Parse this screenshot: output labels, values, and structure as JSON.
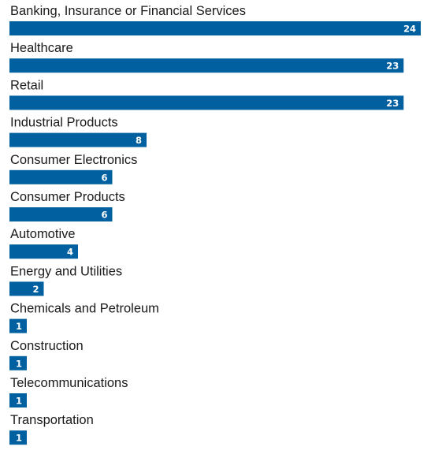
{
  "chart_data": {
    "type": "bar",
    "orientation": "horizontal",
    "categories": [
      "Banking, Insurance or Financial Services",
      "Healthcare",
      "Retail",
      "Industrial Products",
      "Consumer Electronics",
      "Consumer Products",
      "Automotive",
      "Energy and Utilities",
      "Chemicals and Petroleum",
      "Construction",
      "Telecommunications",
      "Transportation"
    ],
    "values": [
      24,
      23,
      23,
      8,
      6,
      6,
      4,
      2,
      1,
      1,
      1,
      1
    ],
    "data_labels": [
      "24",
      "23",
      "23",
      "8",
      "6",
      "6",
      "4",
      "2",
      "1",
      "1",
      "1",
      "1"
    ],
    "title": "",
    "xlabel": "",
    "ylabel": "",
    "xlim": [
      0,
      24
    ],
    "grid": false,
    "legend": "none",
    "colors": {
      "bar": "#0060a0",
      "value_text": "#ffffff",
      "category_text": "#1a1a1a"
    }
  }
}
